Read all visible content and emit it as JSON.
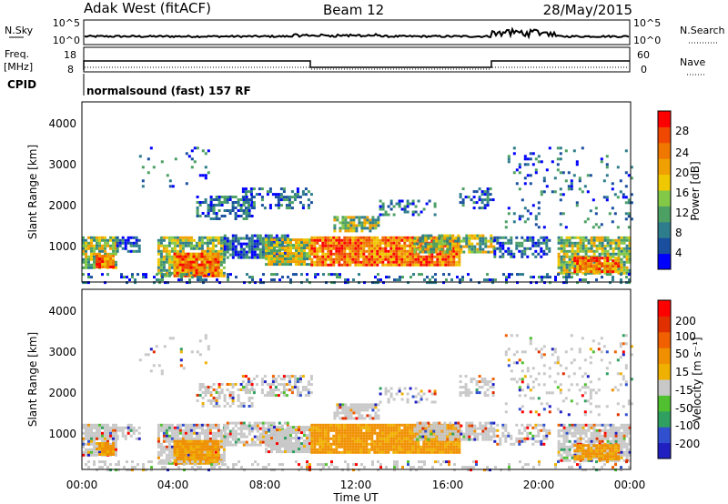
{
  "header": {
    "station": "Adak West (fitACF)",
    "beam": "Beam 12",
    "date": "28/May/2015"
  },
  "top_panels": {
    "nsky_label": "N.Sky",
    "nsearch_label": "N.Search",
    "power_ticks": [
      "10^5",
      "10^0"
    ],
    "freq_label": "Freq.",
    "freq_unit": "[MHz]",
    "freq_ticks": [
      "18",
      "8"
    ],
    "nave_label": "Nave",
    "nave_ticks": [
      "60",
      "0"
    ],
    "cpid_label": "CPID",
    "cpid_value": "normalsound (fast) 157 RF"
  },
  "chart_data": [
    {
      "type": "heatmap",
      "name": "power",
      "ylabel": "Slant Range [km]",
      "ylim": [
        180,
        4600
      ],
      "yticks": [
        "4000",
        "3000",
        "2000",
        "1000"
      ],
      "colorbar_label": "Power [dB]",
      "colorbar_ticks": [
        "28",
        "24",
        "20",
        "16",
        "12",
        "8",
        "4"
      ],
      "colors": [
        "#0000ff",
        "#1a4fa0",
        "#2e7d8c",
        "#4ca064",
        "#84c848",
        "#f0c800",
        "#f0a000",
        "#f07800",
        "#f04800",
        "#ff0000"
      ]
    },
    {
      "type": "heatmap",
      "name": "velocity",
      "ylabel": "Slant Range [km]",
      "ylim": [
        180,
        4600
      ],
      "yticks": [
        "4000",
        "3000",
        "2000",
        "1000"
      ],
      "colorbar_label": "Velocity [m s⁻¹]",
      "colorbar_ticks": [
        "200",
        "100",
        "50",
        "15",
        "-15",
        "-50",
        "-100",
        "-200"
      ],
      "colors": [
        "#2020c0",
        "#3050d0",
        "#30a060",
        "#50c030",
        "#c8c8c8",
        "#f0b000",
        "#f09000",
        "#f06000",
        "#e03000",
        "#ff0000"
      ]
    }
  ],
  "x_axis": {
    "ticks": [
      "00:00",
      "04:00",
      "08:00",
      "12:00",
      "16:00",
      "20:00",
      "00:00"
    ],
    "label": "Time UT"
  }
}
